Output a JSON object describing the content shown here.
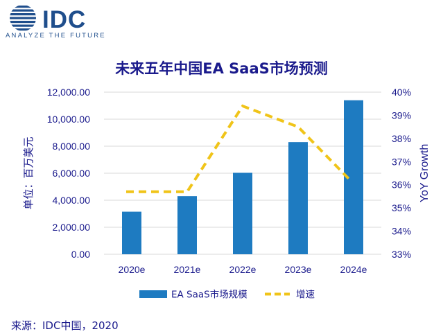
{
  "logo": {
    "brand": "IDC",
    "tagline": "ANALYZE THE FUTURE"
  },
  "colors": {
    "bar": "#1e7bc1",
    "line": "#f0c419",
    "text": "#1a1a8c",
    "logo": "#1f4e8c"
  },
  "chart_data": {
    "type": "bar",
    "title": "未来五年中国EA SaaS市场预测",
    "categories": [
      "2020e",
      "2021e",
      "2022e",
      "2023e",
      "2024e"
    ],
    "series": [
      {
        "name": "EA SaaS市场规模",
        "kind": "bar",
        "axis": "left",
        "values": [
          3150,
          4300,
          6030,
          8300,
          11400
        ]
      },
      {
        "name": "增速",
        "kind": "line",
        "style": "dashed",
        "axis": "right",
        "values": [
          0.357,
          0.357,
          0.394,
          0.385,
          0.362
        ]
      }
    ],
    "ylabel": "单位：百万美元",
    "ylabel_right": "YoY Growth",
    "ylim": [
      0,
      12000
    ],
    "ylim_right": [
      0.33,
      0.4
    ],
    "yticks": [
      "0.00",
      "2,000.00",
      "4,000.00",
      "6,000.00",
      "8,000.00",
      "10,000.00",
      "12,000.00"
    ],
    "yticks_right": [
      "33%",
      "34%",
      "35%",
      "36%",
      "37%",
      "38%",
      "39%",
      "40%"
    ],
    "legend": "bottom"
  },
  "source": "来源：IDC中国，2020"
}
